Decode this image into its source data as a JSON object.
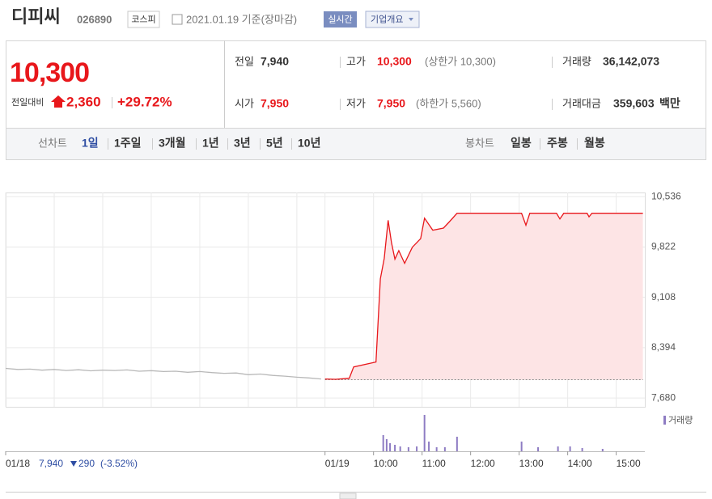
{
  "header": {
    "name": "디피씨",
    "code": "026890",
    "market": "코스피",
    "date": "2021.01.19 기준(장마감)",
    "realtime": "실시간",
    "company_info": "기업개요"
  },
  "price": {
    "current": "10,300",
    "change_label": "전일대비",
    "change": "2,360",
    "rate": "+29.72%"
  },
  "summary": [
    {
      "label": "전일",
      "value": "7,940"
    },
    {
      "label": "고가",
      "value": "10,300",
      "note": "(상한가 10,300)"
    },
    {
      "label": "거래량",
      "value": "36,142,073"
    },
    {
      "label": "시가",
      "value": "7,950"
    },
    {
      "label": "저가",
      "value": "7,950",
      "note": "(하한가 5,560)"
    },
    {
      "label": "거래대금",
      "value": "359,603",
      "unit": "백만"
    }
  ],
  "tabs": {
    "line_label": "선차트",
    "line_items": [
      "1일",
      "1주일",
      "3개월",
      "1년",
      "3년",
      "5년",
      "10년"
    ],
    "candle_label": "봉차트",
    "candle_items": [
      "일봉",
      "주봉",
      "월봉"
    ]
  },
  "prev_day": {
    "close": "7,940",
    "change": "290",
    "rate": "(-3.52%)"
  },
  "chart_data": {
    "type": "line",
    "xlim": [
      0,
      13.17
    ],
    "ylim": [
      7555,
      10595
    ],
    "yticks": [
      {
        "value": 7680,
        "label": "7,680"
      },
      {
        "value": 8394,
        "label": "8,394"
      },
      {
        "value": 9108,
        "label": "9,108"
      },
      {
        "value": 9822,
        "label": "9,822"
      },
      {
        "value": 10536,
        "label": "10,536"
      }
    ],
    "xticks": [
      {
        "value": 0,
        "label": "01/18"
      },
      {
        "value": 1,
        "label": null
      },
      {
        "value": 2,
        "label": null
      },
      {
        "value": 3,
        "label": null
      },
      {
        "value": 4,
        "label": null
      },
      {
        "value": 5,
        "label": null
      },
      {
        "value": 6,
        "label": null
      },
      {
        "value": 6.58,
        "label": "01/19"
      },
      {
        "value": 7.58,
        "label": "10:00"
      },
      {
        "value": 8.58,
        "label": "11:00"
      },
      {
        "value": 9.58,
        "label": "12:00"
      },
      {
        "value": 10.58,
        "label": "13:00"
      },
      {
        "value": 11.58,
        "label": "14:00"
      },
      {
        "value": 12.58,
        "label": "15:00"
      }
    ],
    "grid": true,
    "baseline": 7940,
    "series": [
      {
        "color": "#b8b8b8",
        "x": [
          0,
          0.25,
          0.5,
          0.75,
          1,
          1.25,
          1.5,
          1.75,
          2,
          2.25,
          2.5,
          2.75,
          3,
          3.25,
          3.5,
          3.75,
          4,
          4.25,
          4.5,
          4.75,
          5,
          5.25,
          5.5,
          5.75,
          6,
          6.25,
          6.5
        ],
        "values": [
          8100,
          8085,
          8090,
          8075,
          8085,
          8070,
          8080,
          8065,
          8075,
          8070,
          8078,
          8060,
          8068,
          8055,
          8060,
          8045,
          8055,
          8040,
          8030,
          8035,
          8010,
          8020,
          8000,
          7990,
          7975,
          7965,
          7950
        ]
      },
      {
        "color": "#e8171b",
        "fill": "#fde4e5",
        "x": [
          6.58,
          6.8,
          7.08,
          7.17,
          7.63,
          7.72,
          7.8,
          7.88,
          7.95,
          8.02,
          8.1,
          8.22,
          8.38,
          8.55,
          8.63,
          8.8,
          9.02,
          9.13,
          9.3,
          10.63,
          10.72,
          10.8,
          11.35,
          11.42,
          11.5,
          11.98,
          12.02,
          12.08,
          13.13
        ],
        "values": [
          7950,
          7945,
          7960,
          8120,
          8190,
          9370,
          9660,
          10200,
          9880,
          9650,
          9770,
          9590,
          9820,
          9940,
          10230,
          10060,
          10090,
          10170,
          10300,
          10300,
          10130,
          10300,
          10300,
          10220,
          10300,
          10300,
          10250,
          10300,
          10300
        ]
      }
    ],
    "volume": {
      "name": "거래량",
      "color": "#8e7cc3",
      "ylim": [
        0,
        50
      ],
      "x": [
        7.78,
        7.85,
        7.92,
        8.02,
        8.13,
        8.3,
        8.47,
        8.63,
        8.72,
        8.88,
        9.05,
        9.3,
        10.63,
        10.97,
        11.38,
        11.63,
        11.88,
        12.3
      ],
      "values": [
        20,
        15,
        10,
        8,
        6,
        5,
        6,
        45,
        12,
        5,
        5,
        18,
        12,
        5,
        6,
        6,
        4,
        3
      ]
    }
  }
}
